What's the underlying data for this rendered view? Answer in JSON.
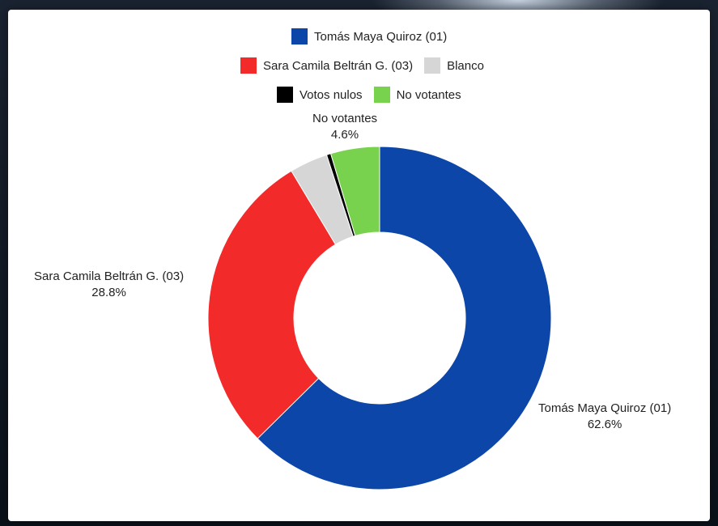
{
  "chart_data": {
    "type": "pie",
    "title": "",
    "legend": {
      "rows": [
        [
          {
            "label": "Tomás Maya Quiroz (01)",
            "color": "#0c46a8"
          }
        ],
        [
          {
            "label": "Sara Camila Beltrán G. (03)",
            "color": "#f22a2a"
          },
          {
            "label": "Blanco",
            "color": "#d6d6d6"
          }
        ],
        [
          {
            "label": "Votos nulos",
            "color": "#000000"
          },
          {
            "label": "No votantes",
            "color": "#78d24e"
          }
        ]
      ]
    },
    "slices": [
      {
        "label": "Tomás Maya Quiroz (01)",
        "value": 62.6,
        "display": "62.6%",
        "color": "#0c46a8"
      },
      {
        "label": "Sara Camila Beltrán G. (03)",
        "value": 28.8,
        "display": "28.8%",
        "color": "#f22a2a"
      },
      {
        "label": "Blanco",
        "value": 3.6,
        "color": "#d6d6d6"
      },
      {
        "label": "Votos nulos",
        "value": 0.4,
        "color": "#000000"
      },
      {
        "label": "No votantes",
        "value": 4.6,
        "display": "4.6%",
        "color": "#78d24e"
      }
    ]
  }
}
